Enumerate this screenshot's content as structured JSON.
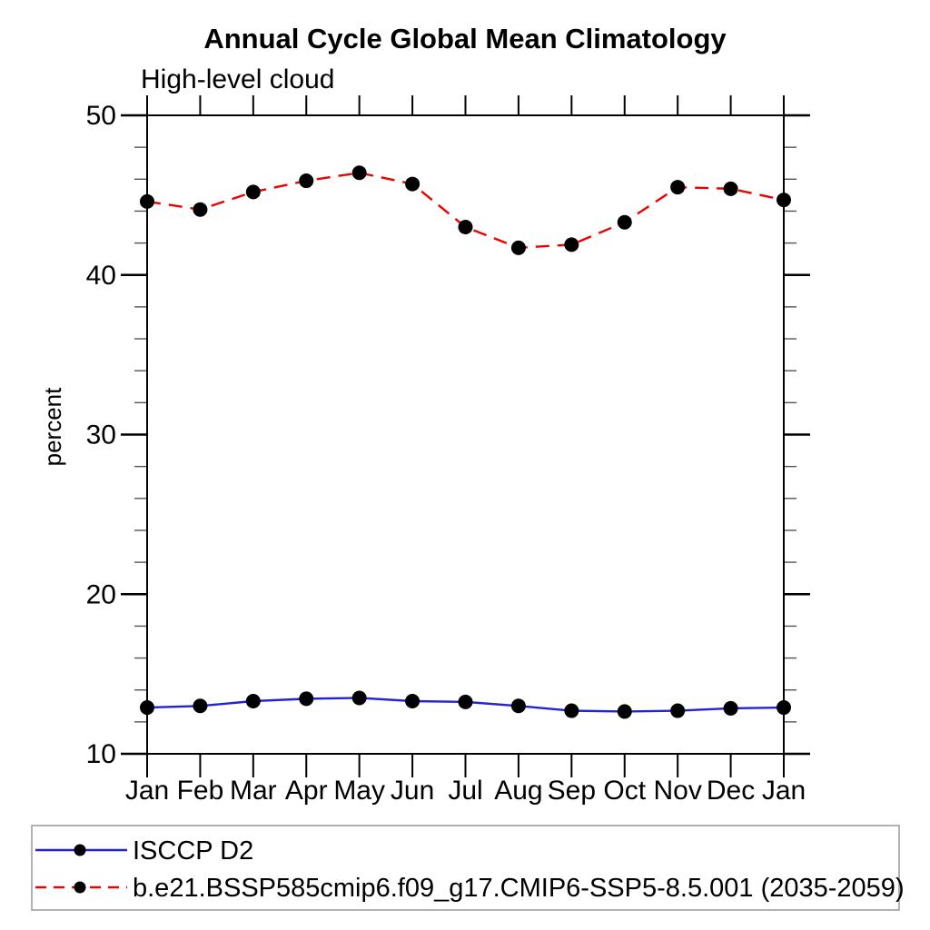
{
  "title": "Annual Cycle Global Mean Climatology",
  "subtitle": "High-level cloud",
  "chart_data": {
    "type": "line",
    "x_categories": [
      "Jan",
      "Feb",
      "Mar",
      "Apr",
      "May",
      "Jun",
      "Jul",
      "Aug",
      "Sep",
      "Oct",
      "Nov",
      "Dec",
      "Jan"
    ],
    "ylabel": "percent",
    "ylim": [
      10,
      50
    ],
    "y_major_ticks": [
      10,
      20,
      30,
      40,
      50
    ],
    "y_minor_step": 2,
    "grid": false,
    "legend_position": "bottom-left-box",
    "axis_color": "#000000",
    "minor_tick_color": "#555555",
    "legend_border_color": "#999999",
    "marker_color": "#000000",
    "series": [
      {
        "name": "ISCCP D2",
        "color": "#2222dd",
        "style": "solid",
        "marker": "circle",
        "values": [
          12.9,
          13.0,
          13.3,
          13.45,
          13.5,
          13.3,
          13.25,
          13.0,
          12.7,
          12.65,
          12.7,
          12.85,
          12.9
        ]
      },
      {
        "name": "b.e21.BSSP585cmip6.f09_g17.CMIP6-SSP5-8.5.001 (2035-2059)",
        "color": "#ee0000",
        "style": "dashed",
        "marker": "circle",
        "values": [
          44.6,
          44.1,
          45.2,
          45.9,
          46.4,
          45.7,
          43.0,
          41.7,
          41.9,
          43.3,
          45.5,
          45.4,
          44.7
        ]
      }
    ]
  }
}
